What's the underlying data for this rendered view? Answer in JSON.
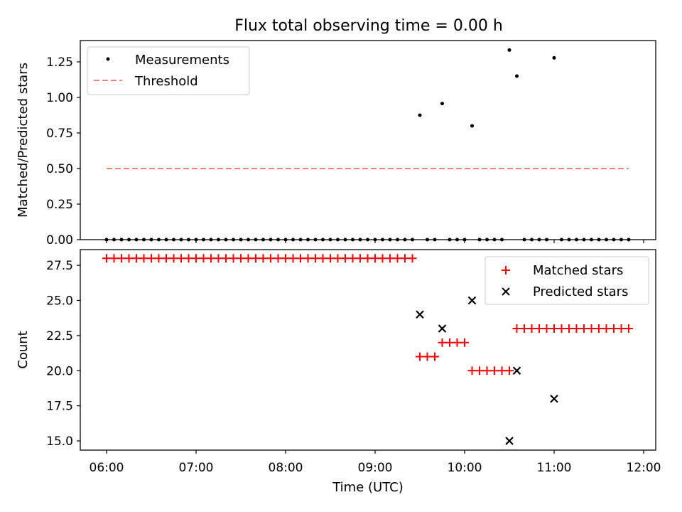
{
  "figure": {
    "title": "Flux total observing time = 0.00 h"
  },
  "colors": {
    "threshold": "#ff7f7f",
    "measurement": "#000000",
    "matched": "#ff0000",
    "predicted": "#000000"
  },
  "chart_data": [
    {
      "type": "scatter",
      "ylabel": "Matched/Predicted stars",
      "xlim": [
        "06:00",
        "12:00"
      ],
      "ylim": [
        0,
        1.4
      ],
      "yticks": [
        "0.00",
        "0.25",
        "0.50",
        "0.75",
        "1.00",
        "1.25"
      ],
      "grid": false,
      "legend": {
        "position": "upper left",
        "entries": [
          "Measurements",
          "Threshold"
        ]
      },
      "threshold": {
        "name": "Threshold",
        "value": 0.5,
        "x": [
          "06:00",
          "11:50"
        ]
      },
      "series": [
        {
          "name": "Measurements",
          "points": [
            [
              "06:00",
              0
            ],
            [
              "06:05",
              0
            ],
            [
              "06:10",
              0
            ],
            [
              "06:15",
              0
            ],
            [
              "06:20",
              0
            ],
            [
              "06:25",
              0
            ],
            [
              "06:30",
              0
            ],
            [
              "06:35",
              0
            ],
            [
              "06:40",
              0
            ],
            [
              "06:45",
              0
            ],
            [
              "06:50",
              0
            ],
            [
              "06:55",
              0
            ],
            [
              "07:00",
              0
            ],
            [
              "07:05",
              0
            ],
            [
              "07:10",
              0
            ],
            [
              "07:15",
              0
            ],
            [
              "07:20",
              0
            ],
            [
              "07:25",
              0
            ],
            [
              "07:30",
              0
            ],
            [
              "07:35",
              0
            ],
            [
              "07:40",
              0
            ],
            [
              "07:45",
              0
            ],
            [
              "07:50",
              0
            ],
            [
              "07:55",
              0
            ],
            [
              "08:00",
              0
            ],
            [
              "08:05",
              0
            ],
            [
              "08:10",
              0
            ],
            [
              "08:15",
              0
            ],
            [
              "08:20",
              0
            ],
            [
              "08:25",
              0
            ],
            [
              "08:30",
              0
            ],
            [
              "08:35",
              0
            ],
            [
              "08:40",
              0
            ],
            [
              "08:45",
              0
            ],
            [
              "08:50",
              0
            ],
            [
              "08:55",
              0
            ],
            [
              "09:00",
              0
            ],
            [
              "09:05",
              0
            ],
            [
              "09:10",
              0
            ],
            [
              "09:15",
              0
            ],
            [
              "09:20",
              0
            ],
            [
              "09:25",
              0
            ],
            [
              "09:30",
              0.875
            ],
            [
              "09:35",
              0
            ],
            [
              "09:40",
              0
            ],
            [
              "09:45",
              0.957
            ],
            [
              "09:50",
              0
            ],
            [
              "09:55",
              0
            ],
            [
              "10:00",
              0
            ],
            [
              "10:05",
              0.8
            ],
            [
              "10:10",
              0
            ],
            [
              "10:15",
              0
            ],
            [
              "10:20",
              0
            ],
            [
              "10:25",
              0
            ],
            [
              "10:30",
              1.333
            ],
            [
              "10:35",
              1.15
            ],
            [
              "10:40",
              0
            ],
            [
              "10:45",
              0
            ],
            [
              "10:50",
              0
            ],
            [
              "10:55",
              0
            ],
            [
              "11:00",
              1.278
            ],
            [
              "11:05",
              0
            ],
            [
              "11:10",
              0
            ],
            [
              "11:15",
              0
            ],
            [
              "11:20",
              0
            ],
            [
              "11:25",
              0
            ],
            [
              "11:30",
              0
            ],
            [
              "11:35",
              0
            ],
            [
              "11:40",
              0
            ],
            [
              "11:45",
              0
            ],
            [
              "11:50",
              0
            ]
          ]
        }
      ]
    },
    {
      "type": "scatter",
      "xlabel": "Time (UTC)",
      "ylabel": "Count",
      "xlim": [
        "06:00",
        "12:00"
      ],
      "ylim": [
        14.4,
        28.4
      ],
      "xticks": [
        "06:00",
        "07:00",
        "08:00",
        "09:00",
        "10:00",
        "11:00",
        "12:00"
      ],
      "yticks": [
        "15.0",
        "17.5",
        "20.0",
        "22.5",
        "25.0",
        "27.5"
      ],
      "grid": false,
      "legend": {
        "position": "upper right",
        "entries": [
          "Matched stars",
          "Predicted stars"
        ]
      },
      "series": [
        {
          "name": "Matched stars",
          "marker": "+",
          "segments": [
            {
              "from": "06:00",
              "to": "09:25",
              "step_minutes": 5,
              "value": 28
            },
            {
              "from": "09:30",
              "to": "09:40",
              "step_minutes": 5,
              "value": 21
            },
            {
              "from": "09:45",
              "to": "10:00",
              "step_minutes": 5,
              "value": 22
            },
            {
              "from": "10:05",
              "to": "10:30",
              "step_minutes": 5,
              "value": 20
            },
            {
              "from": "10:35",
              "to": "11:50",
              "step_minutes": 5,
              "value": 23
            }
          ]
        },
        {
          "name": "Predicted stars",
          "marker": "x",
          "points": [
            [
              "09:30",
              24
            ],
            [
              "09:45",
              23
            ],
            [
              "10:05",
              25
            ],
            [
              "10:30",
              15
            ],
            [
              "10:35",
              20
            ],
            [
              "11:00",
              18
            ]
          ]
        }
      ]
    }
  ]
}
